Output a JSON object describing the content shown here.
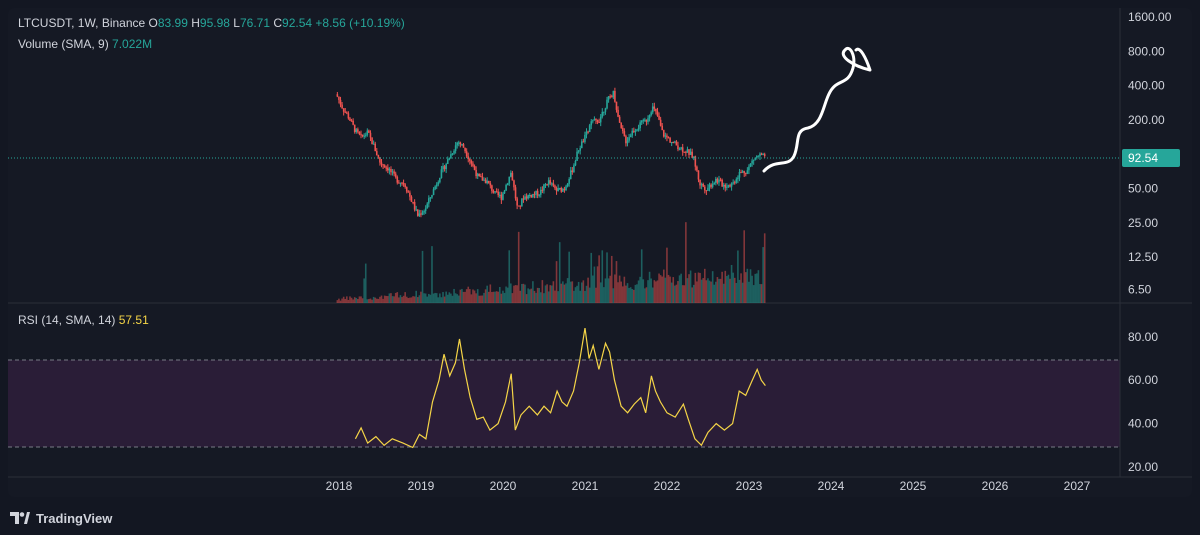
{
  "header": {
    "symbol": "LTCUSDT",
    "interval": "1W",
    "exchange": "Binance",
    "o_key": "O",
    "o_val": "83.99",
    "h_key": "H",
    "h_val": "95.98",
    "l_key": "L",
    "l_val": "76.71",
    "c_key": "C",
    "c_val": "92.54",
    "change": "+8.56 (+10.19%)",
    "volume_label": "Volume (SMA, 9)",
    "volume_value": "7.022M",
    "rsi_label": "RSI (14, SMA, 14)",
    "rsi_value": "57.51"
  },
  "footer": {
    "brand": "TradingView",
    "logo_icon": "tradingview-logo-icon"
  },
  "colors": {
    "background": "#131722",
    "up": "#26a69a",
    "down": "#ef5350",
    "rsi_line": "#f5d547",
    "rsi_band": "#2a1d37",
    "last_price_bg": "#26a69a",
    "drawing": "#ffffff"
  },
  "chart_data": [
    {
      "type": "candlestick",
      "title": "LTCUSDT, 1W, Binance",
      "scale": "log",
      "y_ticks": [
        6.5,
        12.5,
        25,
        50,
        92.54,
        200,
        400,
        800,
        1600
      ],
      "y_tick_labels": [
        "6.50",
        "12.50",
        "25.00",
        "50.00",
        "92.54",
        "200.00",
        "400.00",
        "800.00",
        "1600.00"
      ],
      "last_price": 92.54,
      "last_price_label": "92.54",
      "x_ticks": [
        "2018",
        "2019",
        "2020",
        "2021",
        "2022",
        "2023",
        "2024",
        "2025",
        "2026",
        "2027"
      ],
      "close_path": [
        {
          "t": 2017.98,
          "c": 320
        },
        {
          "t": 2018.05,
          "c": 250
        },
        {
          "t": 2018.12,
          "c": 210
        },
        {
          "t": 2018.2,
          "c": 160
        },
        {
          "t": 2018.27,
          "c": 140
        },
        {
          "t": 2018.35,
          "c": 155
        },
        {
          "t": 2018.42,
          "c": 120
        },
        {
          "t": 2018.5,
          "c": 85
        },
        {
          "t": 2018.6,
          "c": 75
        },
        {
          "t": 2018.7,
          "c": 60
        },
        {
          "t": 2018.8,
          "c": 55
        },
        {
          "t": 2018.88,
          "c": 40
        },
        {
          "t": 2018.96,
          "c": 29
        },
        {
          "t": 2019.05,
          "c": 33
        },
        {
          "t": 2019.15,
          "c": 48
        },
        {
          "t": 2019.25,
          "c": 70
        },
        {
          "t": 2019.35,
          "c": 95
        },
        {
          "t": 2019.45,
          "c": 130
        },
        {
          "t": 2019.52,
          "c": 115
        },
        {
          "t": 2019.6,
          "c": 88
        },
        {
          "t": 2019.7,
          "c": 62
        },
        {
          "t": 2019.8,
          "c": 58
        },
        {
          "t": 2019.9,
          "c": 45
        },
        {
          "t": 2019.98,
          "c": 42
        },
        {
          "t": 2020.1,
          "c": 70
        },
        {
          "t": 2020.18,
          "c": 32
        },
        {
          "t": 2020.25,
          "c": 42
        },
        {
          "t": 2020.35,
          "c": 44
        },
        {
          "t": 2020.45,
          "c": 46
        },
        {
          "t": 2020.55,
          "c": 58
        },
        {
          "t": 2020.65,
          "c": 48
        },
        {
          "t": 2020.75,
          "c": 50
        },
        {
          "t": 2020.85,
          "c": 75
        },
        {
          "t": 2020.92,
          "c": 110
        },
        {
          "t": 2021.0,
          "c": 140
        },
        {
          "t": 2021.08,
          "c": 190
        },
        {
          "t": 2021.17,
          "c": 200
        },
        {
          "t": 2021.28,
          "c": 300
        },
        {
          "t": 2021.35,
          "c": 350
        },
        {
          "t": 2021.42,
          "c": 180
        },
        {
          "t": 2021.5,
          "c": 130
        },
        {
          "t": 2021.58,
          "c": 160
        },
        {
          "t": 2021.67,
          "c": 180
        },
        {
          "t": 2021.75,
          "c": 200
        },
        {
          "t": 2021.82,
          "c": 260
        },
        {
          "t": 2021.88,
          "c": 220
        },
        {
          "t": 2021.95,
          "c": 150
        },
        {
          "t": 2022.05,
          "c": 130
        },
        {
          "t": 2022.15,
          "c": 115
        },
        {
          "t": 2022.25,
          "c": 105
        },
        {
          "t": 2022.32,
          "c": 95
        },
        {
          "t": 2022.4,
          "c": 55
        },
        {
          "t": 2022.48,
          "c": 50
        },
        {
          "t": 2022.6,
          "c": 60
        },
        {
          "t": 2022.7,
          "c": 53
        },
        {
          "t": 2022.8,
          "c": 55
        },
        {
          "t": 2022.88,
          "c": 68
        },
        {
          "t": 2022.98,
          "c": 72
        },
        {
          "t": 2023.05,
          "c": 90
        },
        {
          "t": 2023.13,
          "c": 98
        },
        {
          "t": 2023.2,
          "c": 92.54
        }
      ]
    },
    {
      "type": "line",
      "title": "RSI (14, SMA, 14)",
      "y_ticks": [
        20,
        40,
        60,
        80
      ],
      "y_tick_labels": [
        "20.00",
        "40.00",
        "60.00",
        "80.00"
      ],
      "band": [
        30,
        70
      ],
      "last_value": 57.51,
      "series": [
        {
          "name": "RSI",
          "points": [
            {
              "t": 2018.2,
              "v": 33
            },
            {
              "t": 2018.27,
              "v": 38
            },
            {
              "t": 2018.35,
              "v": 31
            },
            {
              "t": 2018.45,
              "v": 34
            },
            {
              "t": 2018.55,
              "v": 30
            },
            {
              "t": 2018.65,
              "v": 33
            },
            {
              "t": 2018.78,
              "v": 31
            },
            {
              "t": 2018.9,
              "v": 29
            },
            {
              "t": 2018.98,
              "v": 35
            },
            {
              "t": 2019.06,
              "v": 33
            },
            {
              "t": 2019.14,
              "v": 50
            },
            {
              "t": 2019.22,
              "v": 60
            },
            {
              "t": 2019.28,
              "v": 72
            },
            {
              "t": 2019.35,
              "v": 62
            },
            {
              "t": 2019.42,
              "v": 68
            },
            {
              "t": 2019.47,
              "v": 79
            },
            {
              "t": 2019.53,
              "v": 65
            },
            {
              "t": 2019.6,
              "v": 52
            },
            {
              "t": 2019.68,
              "v": 42
            },
            {
              "t": 2019.76,
              "v": 43
            },
            {
              "t": 2019.84,
              "v": 37
            },
            {
              "t": 2019.94,
              "v": 40
            },
            {
              "t": 2020.03,
              "v": 50
            },
            {
              "t": 2020.1,
              "v": 63
            },
            {
              "t": 2020.15,
              "v": 37
            },
            {
              "t": 2020.22,
              "v": 44
            },
            {
              "t": 2020.32,
              "v": 48
            },
            {
              "t": 2020.42,
              "v": 44
            },
            {
              "t": 2020.5,
              "v": 48
            },
            {
              "t": 2020.58,
              "v": 45
            },
            {
              "t": 2020.66,
              "v": 55
            },
            {
              "t": 2020.72,
              "v": 50
            },
            {
              "t": 2020.78,
              "v": 48
            },
            {
              "t": 2020.86,
              "v": 55
            },
            {
              "t": 2020.93,
              "v": 68
            },
            {
              "t": 2021.0,
              "v": 84
            },
            {
              "t": 2021.05,
              "v": 70
            },
            {
              "t": 2021.1,
              "v": 76
            },
            {
              "t": 2021.17,
              "v": 65
            },
            {
              "t": 2021.25,
              "v": 77
            },
            {
              "t": 2021.3,
              "v": 73
            },
            {
              "t": 2021.36,
              "v": 60
            },
            {
              "t": 2021.44,
              "v": 48
            },
            {
              "t": 2021.52,
              "v": 45
            },
            {
              "t": 2021.6,
              "v": 49
            },
            {
              "t": 2021.68,
              "v": 52
            },
            {
              "t": 2021.74,
              "v": 45
            },
            {
              "t": 2021.81,
              "v": 62
            },
            {
              "t": 2021.86,
              "v": 55
            },
            {
              "t": 2021.92,
              "v": 50
            },
            {
              "t": 2022.0,
              "v": 45
            },
            {
              "t": 2022.1,
              "v": 43
            },
            {
              "t": 2022.2,
              "v": 49
            },
            {
              "t": 2022.26,
              "v": 42
            },
            {
              "t": 2022.34,
              "v": 33
            },
            {
              "t": 2022.42,
              "v": 30
            },
            {
              "t": 2022.5,
              "v": 36
            },
            {
              "t": 2022.6,
              "v": 40
            },
            {
              "t": 2022.7,
              "v": 37
            },
            {
              "t": 2022.8,
              "v": 40
            },
            {
              "t": 2022.88,
              "v": 55
            },
            {
              "t": 2022.96,
              "v": 53
            },
            {
              "t": 2023.04,
              "v": 60
            },
            {
              "t": 2023.1,
              "v": 65
            },
            {
              "t": 2023.15,
              "v": 60
            },
            {
              "t": 2023.2,
              "v": 57.51
            }
          ]
        }
      ]
    }
  ]
}
